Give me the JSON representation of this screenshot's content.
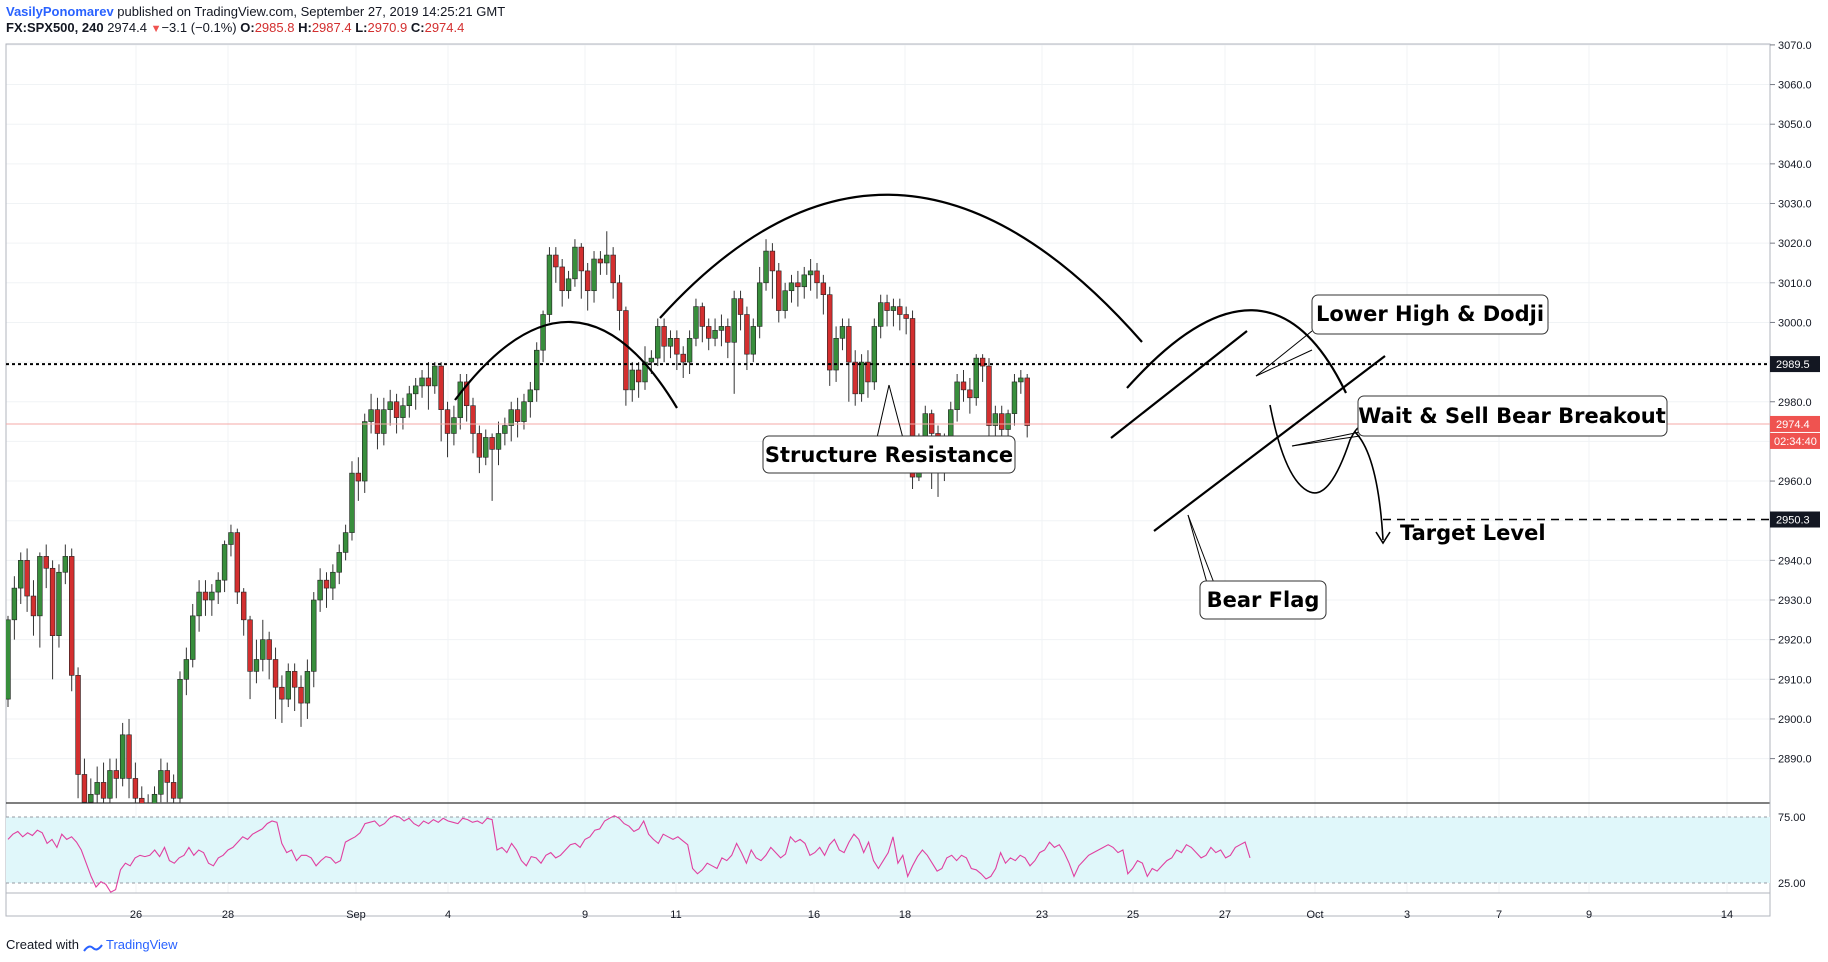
{
  "header": {
    "author": "VasilyPonomarev",
    "published": "published on TradingView.com, September 27, 2019 14:25:21 GMT",
    "symbol": "FX:SPX500, 240",
    "last": "2974.4",
    "change_arrow": "▼",
    "change": "−3.1 (−0.1%)",
    "open_label": "O:",
    "open": "2985.8",
    "high_label": "H:",
    "high": "2987.4",
    "low_label": "L:",
    "low": "2970.9",
    "close_label": "C:",
    "close": "2974.4"
  },
  "footer": {
    "created_with": "Created with",
    "brand": "TradingView"
  },
  "colors": {
    "bull": "#388e3c",
    "bear": "#d32f2f",
    "rsi_line": "#e040a0",
    "rsi_band": "#e0f7fa",
    "price_tag": "#ef5350",
    "level_tag": "#131722",
    "grid": "#f0f3f5"
  },
  "chart_data": {
    "type": "candlestick",
    "price_axis": {
      "ylim": [
        2880,
        3075
      ],
      "ticks": [
        "2890.0",
        "2900.0",
        "2910.0",
        "2920.0",
        "2930.0",
        "2940.0",
        "2950.0",
        "2960.0",
        "2970.0",
        "2980.0",
        "2990.0",
        "3000.0",
        "3010.0",
        "3020.0",
        "3030.0",
        "3040.0",
        "3050.0",
        "3060.0",
        "3070.0"
      ]
    },
    "time_axis": {
      "ticks": [
        "26",
        "28",
        "Sep",
        "4",
        "9",
        "11",
        "16",
        "18",
        "23",
        "25",
        "27",
        "Oct",
        "3",
        "7",
        "9",
        "14"
      ]
    },
    "last_price": {
      "value": 2974.4,
      "label": "2974.4",
      "countdown": "02:34:40"
    },
    "levels": [
      {
        "name": "structure-resistance",
        "value": 2989.5,
        "label": "2989.5",
        "style": "dotted"
      },
      {
        "name": "target-level",
        "value": 2950.3,
        "label": "2950.3",
        "style": "dashed"
      }
    ],
    "annotations": [
      {
        "name": "structure-resistance-label",
        "text": "Structure Resistance"
      },
      {
        "name": "lower-high-dodji-label",
        "text": "Lower High & Dodji"
      },
      {
        "name": "wait-sell-label",
        "text": "Wait & Sell Bear Breakout"
      },
      {
        "name": "bear-flag-label",
        "text": "Bear Flag"
      },
      {
        "name": "target-level-label",
        "text": "Target Level"
      }
    ],
    "rsi": {
      "ticks": [
        "75.00",
        "25.00"
      ],
      "upper": 75,
      "lower": 25,
      "values": [
        58,
        62,
        64,
        60,
        63,
        61,
        65,
        63,
        55,
        58,
        52,
        62,
        58,
        60,
        56,
        50,
        40,
        30,
        22,
        26,
        24,
        18,
        20,
        35,
        40,
        38,
        44,
        46,
        45,
        46,
        50,
        45,
        52,
        42,
        40,
        44,
        46,
        52,
        46,
        50,
        48,
        40,
        38,
        44,
        46,
        50,
        52,
        56,
        60,
        58,
        62,
        64,
        66,
        70,
        72,
        71,
        55,
        48,
        50,
        42,
        46,
        46,
        44,
        38,
        42,
        45,
        44,
        40,
        42,
        56,
        58,
        60,
        63,
        70,
        71,
        72,
        68,
        70,
        74,
        76,
        75,
        72,
        74,
        70,
        68,
        72,
        70,
        73,
        71,
        74,
        72,
        71,
        70,
        74,
        73,
        71,
        72,
        70,
        74,
        73,
        50,
        52,
        48,
        55,
        50,
        42,
        38,
        45,
        44,
        40,
        46,
        48,
        44,
        46,
        50,
        54,
        55,
        52,
        58,
        60,
        65,
        66,
        72,
        74,
        76,
        74,
        70,
        68,
        64,
        66,
        72,
        62,
        58,
        55,
        62,
        60,
        58,
        60,
        57,
        54,
        36,
        32,
        35,
        40,
        38,
        36,
        44,
        42,
        46,
        55,
        48,
        40,
        50,
        44,
        42,
        46,
        52,
        48,
        44,
        47,
        60,
        56,
        58,
        55,
        46,
        48,
        52,
        46,
        54,
        58,
        50,
        48,
        56,
        62,
        58,
        48,
        56,
        42,
        36,
        42,
        48,
        60,
        40,
        46,
        30,
        38,
        45,
        50,
        46,
        40,
        34,
        36,
        44,
        46,
        42,
        46,
        44,
        36,
        35,
        32,
        28,
        30,
        36,
        48,
        40,
        44,
        42,
        46,
        44,
        38,
        42,
        48,
        50,
        56,
        52,
        54,
        48,
        40,
        30,
        38,
        42,
        46,
        48,
        50,
        52,
        54,
        52,
        48,
        50,
        32,
        36,
        42,
        40,
        30,
        36,
        34,
        38,
        42,
        44,
        50,
        48,
        54,
        52,
        48,
        44,
        46,
        52,
        48,
        50,
        44,
        46,
        52,
        54,
        56,
        44
      ]
    },
    "candles": [
      [
        2905,
        2925,
        2903,
        2926
      ],
      [
        2925,
        2933,
        2920,
        2936
      ],
      [
        2933,
        2940,
        2929,
        2942
      ],
      [
        2940,
        2931,
        2927,
        2943
      ],
      [
        2931,
        2926,
        2921,
        2935
      ],
      [
        2926,
        2941,
        2918,
        2942
      ],
      [
        2941,
        2938,
        2933,
        2944
      ],
      [
        2938,
        2921,
        2910,
        2940
      ],
      [
        2921,
        2937,
        2918,
        2939
      ],
      [
        2937,
        2941,
        2934,
        2944
      ],
      [
        2941,
        2911,
        2907,
        2943
      ],
      [
        2911,
        2886,
        2880,
        2913
      ],
      [
        2886,
        2879,
        2870,
        2890
      ],
      [
        2879,
        2881,
        2874,
        2885
      ],
      [
        2881,
        2884,
        2876,
        2888
      ],
      [
        2884,
        2880,
        2875,
        2889
      ],
      [
        2880,
        2887,
        2878,
        2890
      ],
      [
        2887,
        2885,
        2880,
        2890
      ],
      [
        2885,
        2896,
        2883,
        2899
      ],
      [
        2896,
        2885,
        2880,
        2900
      ],
      [
        2885,
        2880,
        2872,
        2889
      ],
      [
        2880,
        2878,
        2874,
        2883
      ],
      [
        2878,
        2876,
        2870,
        2881
      ],
      [
        2876,
        2881,
        2873,
        2883
      ],
      [
        2881,
        2887,
        2879,
        2890
      ],
      [
        2887,
        2884,
        2879,
        2889
      ],
      [
        2884,
        2880,
        2874,
        2886
      ],
      [
        2880,
        2910,
        2878,
        2912
      ],
      [
        2910,
        2915,
        2906,
        2918
      ],
      [
        2915,
        2926,
        2913,
        2929
      ],
      [
        2926,
        2932,
        2922,
        2935
      ],
      [
        2932,
        2930,
        2926,
        2935
      ],
      [
        2930,
        2932,
        2926,
        2934
      ],
      [
        2932,
        2935,
        2929,
        2937
      ],
      [
        2935,
        2944,
        2932,
        2945
      ],
      [
        2944,
        2947,
        2941,
        2949
      ],
      [
        2947,
        2932,
        2929,
        2948
      ],
      [
        2932,
        2925,
        2921,
        2933
      ],
      [
        2925,
        2912,
        2905,
        2926
      ],
      [
        2912,
        2915,
        2909,
        2920
      ],
      [
        2915,
        2920,
        2912,
        2925
      ],
      [
        2920,
        2915,
        2910,
        2922
      ],
      [
        2915,
        2908,
        2900,
        2918
      ],
      [
        2908,
        2905,
        2899,
        2911
      ],
      [
        2905,
        2912,
        2903,
        2914
      ],
      [
        2912,
        2908,
        2902,
        2914
      ],
      [
        2908,
        2904,
        2898,
        2911
      ],
      [
        2904,
        2912,
        2900,
        2915
      ],
      [
        2912,
        2930,
        2908,
        2932
      ],
      [
        2930,
        2935,
        2927,
        2938
      ],
      [
        2935,
        2933,
        2928,
        2937
      ],
      [
        2933,
        2937,
        2930,
        2939
      ],
      [
        2937,
        2942,
        2934,
        2944
      ],
      [
        2942,
        2947,
        2940,
        2949
      ],
      [
        2947,
        2962,
        2945,
        2965
      ],
      [
        2962,
        2960,
        2955,
        2966
      ],
      [
        2960,
        2975,
        2957,
        2977
      ],
      [
        2975,
        2978,
        2972,
        2982
      ],
      [
        2978,
        2972,
        2968,
        2981
      ],
      [
        2972,
        2978,
        2969,
        2981
      ],
      [
        2978,
        2980,
        2974,
        2983
      ],
      [
        2980,
        2976,
        2972,
        2982
      ],
      [
        2976,
        2979,
        2973,
        2981
      ],
      [
        2979,
        2982,
        2976,
        2984
      ],
      [
        2982,
        2984,
        2978,
        2986
      ],
      [
        2984,
        2986,
        2981,
        2988
      ],
      [
        2986,
        2984,
        2978,
        2990
      ],
      [
        2984,
        2989,
        2982,
        2990
      ],
      [
        2989,
        2978,
        2970,
        2990
      ],
      [
        2978,
        2972,
        2966,
        2980
      ],
      [
        2972,
        2976,
        2969,
        2979
      ],
      [
        2976,
        2985,
        2973,
        2987
      ],
      [
        2985,
        2979,
        2975,
        2987
      ],
      [
        2979,
        2972,
        2967,
        2981
      ],
      [
        2972,
        2966,
        2962,
        2974
      ],
      [
        2966,
        2971,
        2964,
        2973
      ],
      [
        2971,
        2968,
        2955,
        2972
      ],
      [
        2968,
        2972,
        2964,
        2975
      ],
      [
        2972,
        2974,
        2969,
        2976
      ],
      [
        2974,
        2978,
        2970,
        2980
      ],
      [
        2978,
        2975,
        2971,
        2981
      ],
      [
        2975,
        2980,
        2973,
        2982
      ],
      [
        2980,
        2983,
        2976,
        2985
      ],
      [
        2983,
        2993,
        2980,
        2995
      ],
      [
        2993,
        3002,
        2990,
        3003
      ],
      [
        3002,
        3017,
        3000,
        3019
      ],
      [
        3017,
        3014,
        3010,
        3019
      ],
      [
        3014,
        3008,
        3004,
        3016
      ],
      [
        3008,
        3011,
        3006,
        3013
      ],
      [
        3011,
        3019,
        3009,
        3021
      ],
      [
        3019,
        3013,
        3006,
        3020
      ],
      [
        3013,
        3008,
        3003,
        3015
      ],
      [
        3008,
        3016,
        3005,
        3018
      ],
      [
        3016,
        3015,
        3012,
        3018
      ],
      [
        3015,
        3017,
        3012,
        3023
      ],
      [
        3017,
        3010,
        3006,
        3019
      ],
      [
        3010,
        3003,
        2998,
        3012
      ],
      [
        3003,
        2983,
        2979,
        3004
      ],
      [
        2983,
        2988,
        2980,
        2990
      ],
      [
        2988,
        2985,
        2981,
        2990
      ],
      [
        2985,
        2990,
        2983,
        2994
      ],
      [
        2990,
        2991,
        2987,
        2993
      ],
      [
        2991,
        2999,
        2989,
        3001
      ],
      [
        2999,
        2994,
        2990,
        3001
      ],
      [
        2994,
        2996,
        2991,
        2998
      ],
      [
        2996,
        2992,
        2988,
        2998
      ],
      [
        2992,
        2990,
        2986,
        2994
      ],
      [
        2990,
        2996,
        2987,
        2998
      ],
      [
        2996,
        3004,
        2994,
        3006
      ],
      [
        3004,
        2999,
        2995,
        3005
      ],
      [
        2999,
        2996,
        2993,
        3001
      ],
      [
        2996,
        2998,
        2994,
        3001
      ],
      [
        2998,
        2999,
        2994,
        3002
      ],
      [
        2999,
        2995,
        2991,
        3001
      ],
      [
        2995,
        3006,
        2982,
        3008
      ],
      [
        3006,
        3002,
        2998,
        3008
      ],
      [
        3002,
        2992,
        2988,
        3004
      ],
      [
        2992,
        2999,
        2990,
        3001
      ],
      [
        2999,
        3010,
        2996,
        3014
      ],
      [
        3010,
        3018,
        3008,
        3021
      ],
      [
        3018,
        3013,
        3006,
        3020
      ],
      [
        3013,
        3003,
        3000,
        3015
      ],
      [
        3003,
        3008,
        3001,
        3010
      ],
      [
        3008,
        3010,
        3005,
        3012
      ],
      [
        3010,
        3009,
        3004,
        3013
      ],
      [
        3009,
        3012,
        3006,
        3014
      ],
      [
        3012,
        3013,
        3008,
        3016
      ],
      [
        3013,
        3010,
        3006,
        3015
      ],
      [
        3010,
        3007,
        3002,
        3012
      ],
      [
        3007,
        2988,
        2984,
        3009
      ],
      [
        2988,
        2996,
        2985,
        2999
      ],
      [
        2996,
        2999,
        2993,
        3001
      ],
      [
        2999,
        2990,
        2980,
        3001
      ],
      [
        2990,
        2982,
        2979,
        2993
      ],
      [
        2982,
        2990,
        2980,
        2992
      ],
      [
        2990,
        2985,
        2981,
        2993
      ],
      [
        2985,
        2999,
        2983,
        3001
      ],
      [
        2999,
        3005,
        2996,
        3007
      ],
      [
        3005,
        3003,
        2999,
        3007
      ],
      [
        3003,
        3004,
        2999,
        3006
      ],
      [
        3004,
        3002,
        2998,
        3006
      ],
      [
        3002,
        3001,
        2997,
        3004
      ],
      [
        3001,
        2961,
        2958,
        3003
      ],
      [
        2961,
        2969,
        2960,
        2972
      ],
      [
        2969,
        2977,
        2966,
        2979
      ],
      [
        2977,
        2972,
        2958,
        2978
      ],
      [
        2972,
        2962,
        2956,
        2974
      ],
      [
        2962,
        2970,
        2960,
        2972
      ],
      [
        2970,
        2978,
        2967,
        2980
      ],
      [
        2978,
        2985,
        2975,
        2987
      ],
      [
        2985,
        2983,
        2980,
        2988
      ],
      [
        2983,
        2981,
        2977,
        2986
      ],
      [
        2981,
        2991,
        2979,
        2992
      ],
      [
        2991,
        2989,
        2985,
        2992
      ],
      [
        2989,
        2974,
        2966,
        2991
      ],
      [
        2974,
        2977,
        2970,
        2979
      ],
      [
        2977,
        2973,
        2969,
        2979
      ],
      [
        2973,
        2977,
        2970,
        2978
      ],
      [
        2977,
        2985,
        2974,
        2987
      ],
      [
        2985,
        2986,
        2982,
        2988
      ],
      [
        2986,
        2974,
        2971,
        2987
      ]
    ]
  }
}
